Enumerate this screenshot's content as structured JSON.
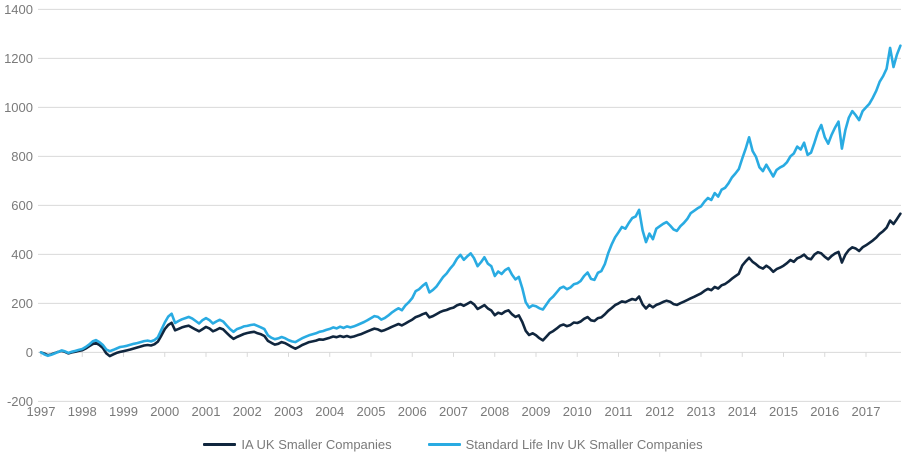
{
  "chart_data": {
    "type": "line",
    "title": "",
    "xlabel": "",
    "ylabel": "",
    "ylim": [
      -200,
      1400
    ],
    "y_ticks": [
      1400,
      1200,
      1000,
      800,
      600,
      400,
      200,
      0,
      -200
    ],
    "x_tick_labels": [
      "1997",
      "1998",
      "1999",
      "2000",
      "2001",
      "2002",
      "2003",
      "2004",
      "2005",
      "2006",
      "2007",
      "2008",
      "2009",
      "2010",
      "2011",
      "2012",
      "2013",
      "2014",
      "2015",
      "2016",
      "2017"
    ],
    "x_start_year": 1997,
    "x_interval": "monthly",
    "grid": "horizontal-only",
    "legend_position": "bottom-center",
    "grid_color": "#d9d9d9",
    "axis_text_color": "#7a7a7a",
    "series": [
      {
        "name": "IA UK Smaller Companies",
        "color": "#10263e",
        "values": [
          0,
          -5,
          -12,
          -8,
          -3,
          2,
          6,
          2,
          -4,
          0,
          3,
          6,
          9,
          16,
          25,
          34,
          38,
          30,
          18,
          -4,
          -15,
          -8,
          -2,
          2,
          5,
          8,
          12,
          16,
          20,
          24,
          28,
          30,
          28,
          33,
          44,
          68,
          95,
          112,
          121,
          90,
          96,
          102,
          106,
          109,
          101,
          93,
          86,
          95,
          104,
          98,
          86,
          92,
          99,
          94,
          80,
          66,
          55,
          63,
          69,
          75,
          79,
          82,
          84,
          78,
          74,
          67,
          47,
          39,
          32,
          35,
          42,
          38,
          30,
          22,
          15,
          22,
          30,
          36,
          42,
          45,
          48,
          53,
          52,
          56,
          60,
          65,
          62,
          67,
          63,
          67,
          62,
          65,
          70,
          74,
          80,
          86,
          92,
          97,
          94,
          87,
          91,
          97,
          104,
          110,
          116,
          110,
          118,
          126,
          134,
          144,
          149,
          156,
          161,
          143,
          148,
          156,
          164,
          170,
          173,
          179,
          183,
          192,
          197,
          190,
          198,
          206,
          196,
          177,
          185,
          193,
          179,
          171,
          152,
          162,
          157,
          167,
          172,
          156,
          145,
          151,
          124,
          88,
          71,
          78,
          70,
          58,
          49,
          64,
          79,
          87,
          97,
          109,
          114,
          107,
          112,
          122,
          120,
          126,
          137,
          144,
          131,
          128,
          140,
          143,
          155,
          170,
          181,
          193,
          200,
          208,
          205,
          212,
          218,
          214,
          228,
          196,
          179,
          194,
          184,
          194,
          199,
          206,
          211,
          207,
          197,
          194,
          201,
          207,
          214,
          221,
          227,
          234,
          241,
          251,
          259,
          254,
          267,
          261,
          274,
          279,
          289,
          301,
          311,
          321,
          355,
          372,
          386,
          370,
          360,
          348,
          342,
          354,
          344,
          329,
          340,
          346,
          354,
          364,
          377,
          370,
          384,
          390,
          399,
          384,
          380,
          399,
          409,
          404,
          390,
          380,
          394,
          404,
          410,
          367,
          399,
          418,
          429,
          424,
          414,
          429,
          437,
          447,
          457,
          469,
          484,
          495,
          509,
          538,
          524,
          544,
          566
        ]
      },
      {
        "name": "Standard Life Inv UK Smaller Companies",
        "color": "#29abe2",
        "values": [
          0,
          -8,
          -14,
          -10,
          -4,
          2,
          8,
          4,
          -2,
          3,
          6,
          10,
          14,
          22,
          32,
          45,
          50,
          42,
          30,
          12,
          5,
          10,
          16,
          22,
          24,
          27,
          31,
          35,
          38,
          42,
          46,
          48,
          45,
          50,
          62,
          92,
          122,
          146,
          158,
          120,
          128,
          135,
          140,
          145,
          138,
          128,
          118,
          132,
          140,
          132,
          118,
          126,
          133,
          126,
          110,
          95,
          84,
          95,
          100,
          106,
          108,
          112,
          114,
          108,
          102,
          95,
          70,
          60,
          54,
          57,
          63,
          58,
          50,
          45,
          42,
          50,
          58,
          64,
          70,
          74,
          78,
          84,
          87,
          92,
          96,
          102,
          98,
          105,
          100,
          106,
          102,
          106,
          112,
          118,
          124,
          132,
          140,
          148,
          145,
          134,
          140,
          150,
          162,
          172,
          180,
          172,
          192,
          205,
          222,
          250,
          258,
          272,
          283,
          245,
          255,
          268,
          288,
          308,
          322,
          342,
          358,
          382,
          398,
          378,
          392,
          404,
          384,
          352,
          368,
          388,
          362,
          352,
          312,
          330,
          320,
          336,
          344,
          318,
          298,
          308,
          262,
          205,
          183,
          192,
          188,
          180,
          175,
          195,
          215,
          228,
          245,
          262,
          268,
          258,
          265,
          278,
          282,
          292,
          312,
          326,
          300,
          296,
          325,
          332,
          360,
          405,
          440,
          470,
          490,
          512,
          505,
          528,
          548,
          555,
          582,
          498,
          450,
          485,
          462,
          505,
          515,
          525,
          532,
          518,
          502,
          496,
          515,
          528,
          545,
          568,
          578,
          588,
          596,
          615,
          630,
          622,
          650,
          636,
          664,
          672,
          690,
          714,
          730,
          748,
          792,
          832,
          878,
          822,
          798,
          756,
          740,
          766,
          742,
          718,
          745,
          755,
          762,
          776,
          800,
          812,
          840,
          828,
          856,
          806,
          815,
          855,
          900,
          928,
          878,
          852,
          888,
          918,
          942,
          832,
          908,
          958,
          985,
          968,
          948,
          985,
          1000,
          1015,
          1040,
          1068,
          1105,
          1128,
          1158,
          1243,
          1165,
          1215,
          1252
        ]
      }
    ]
  },
  "legend": {
    "item1": "IA UK Smaller Companies",
    "item2": "Standard Life Inv UK Smaller Companies"
  }
}
